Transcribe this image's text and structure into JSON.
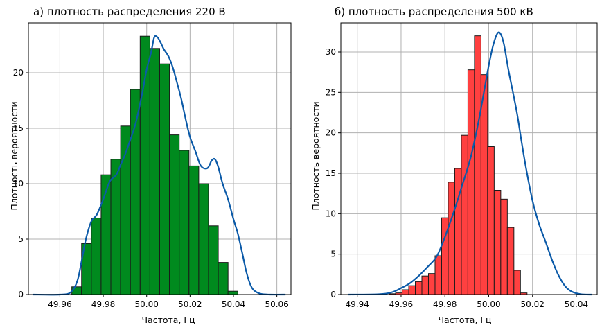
{
  "chart_data": [
    {
      "type": "bar",
      "title": "а) плотность распределения 220 В",
      "xlabel": "Частота, Гц",
      "ylabel": "Плотность вероятности",
      "xlim": [
        49.9455,
        50.0665
      ],
      "ylim": [
        0,
        24.5
      ],
      "xticks": [
        "49.96",
        "49.98",
        "50.00",
        "50.02",
        "50.04",
        "50.06"
      ],
      "yticks": [
        "0",
        "5",
        "10",
        "15",
        "20"
      ],
      "grid": true,
      "bar_color": "#008a1e",
      "line_color": "#0b5aa8",
      "bin_edges": [
        49.9655,
        49.97,
        49.9745,
        49.979,
        49.9835,
        49.988,
        49.9925,
        49.997,
        50.0015,
        50.006,
        50.0105,
        50.015,
        50.0195,
        50.024,
        50.0285,
        50.033,
        50.0375,
        50.042,
        50.0465,
        50.051
      ],
      "values": [
        0.7,
        4.6,
        6.9,
        10.8,
        12.2,
        15.2,
        18.5,
        23.3,
        22.2,
        20.8,
        14.4,
        13.0,
        11.6,
        10.0,
        6.2,
        2.9,
        0.3,
        0.0,
        0.0
      ],
      "kde": {
        "x": [
          49.9475,
          49.96,
          49.965,
          49.968,
          49.97,
          49.972,
          49.9745,
          49.977,
          49.98,
          49.983,
          49.986,
          49.988,
          49.99,
          49.992,
          49.995,
          49.998,
          50.0,
          50.002,
          50.0035,
          50.005,
          50.0065,
          50.008,
          50.01,
          50.012,
          50.014,
          50.016,
          50.018,
          50.02,
          50.0225,
          50.025,
          50.028,
          50.03,
          50.0315,
          50.033,
          50.035,
          50.0375,
          50.04,
          50.042,
          50.044,
          50.046,
          50.048,
          50.05,
          50.053,
          50.057,
          50.064
        ],
        "y": [
          0,
          0,
          0.2,
          1.2,
          3.0,
          5.0,
          6.6,
          7.2,
          8.6,
          10.2,
          10.8,
          11.7,
          12.6,
          13.7,
          15.5,
          18.2,
          20.3,
          21.8,
          23.2,
          23.2,
          22.7,
          22.1,
          21.5,
          20.5,
          19.1,
          17.6,
          15.8,
          14.2,
          12.9,
          11.6,
          11.4,
          12.1,
          12.2,
          11.5,
          10.0,
          8.6,
          6.8,
          5.5,
          3.8,
          2.0,
          0.8,
          0.3,
          0.05,
          0,
          0
        ]
      }
    },
    {
      "type": "bar",
      "title": "б) плотность распределения 500 кВ",
      "xlabel": "Частота, Гц",
      "ylabel": "Плотность вероятности",
      "xlim": [
        49.9325,
        50.0495
      ],
      "ylim": [
        0,
        33.6
      ],
      "xticks": [
        "49.94",
        "49.96",
        "49.98",
        "50.00",
        "50.02",
        "50.04"
      ],
      "yticks": [
        "0",
        "5",
        "10",
        "15",
        "20",
        "25",
        "30"
      ],
      "grid": true,
      "bar_color": "#ff4040",
      "line_color": "#0b5aa8",
      "bin_edges": [
        49.9545,
        49.9575,
        49.9605,
        49.9635,
        49.9665,
        49.9695,
        49.9725,
        49.9755,
        49.9785,
        49.9815,
        49.9845,
        49.9875,
        49.9905,
        49.9935,
        49.9965,
        49.9995,
        50.0025,
        50.0055,
        50.0085,
        50.0115,
        50.0145,
        50.0175,
        50.0205,
        50.0235,
        50.0265,
        50.0295,
        50.0325,
        50.0355,
        50.0385,
        50.0415
      ],
      "values": [
        0.1,
        0.2,
        0.6,
        1.1,
        1.6,
        2.3,
        2.6,
        4.8,
        9.5,
        13.9,
        15.6,
        19.7,
        27.8,
        32.0,
        27.2,
        18.3,
        12.9,
        11.8,
        8.3,
        3.0,
        0.2,
        0.0,
        0.0,
        0.0,
        0.0,
        0.0,
        0.0,
        0.0,
        0.0
      ],
      "kde": {
        "x": [
          49.936,
          49.95,
          49.956,
          49.96,
          49.964,
          49.968,
          49.972,
          49.976,
          49.979,
          49.982,
          49.985,
          49.988,
          49.99,
          49.992,
          49.994,
          49.996,
          49.998,
          50.0,
          50.002,
          50.004,
          50.0055,
          50.007,
          50.009,
          50.011,
          50.013,
          50.015,
          50.017,
          50.02,
          50.023,
          50.026,
          50.029,
          50.032,
          50.035,
          50.038,
          50.042,
          50.047
        ],
        "y": [
          0,
          0.05,
          0.3,
          0.8,
          1.4,
          2.3,
          3.4,
          4.6,
          6.4,
          8.6,
          11.0,
          13.6,
          15.3,
          17.2,
          19.6,
          22.3,
          25.3,
          28.3,
          30.8,
          32.3,
          32.2,
          30.9,
          27.8,
          25.1,
          22.3,
          18.9,
          15.7,
          11.6,
          8.7,
          6.5,
          4.2,
          2.3,
          1.0,
          0.35,
          0.05,
          0
        ]
      }
    }
  ]
}
